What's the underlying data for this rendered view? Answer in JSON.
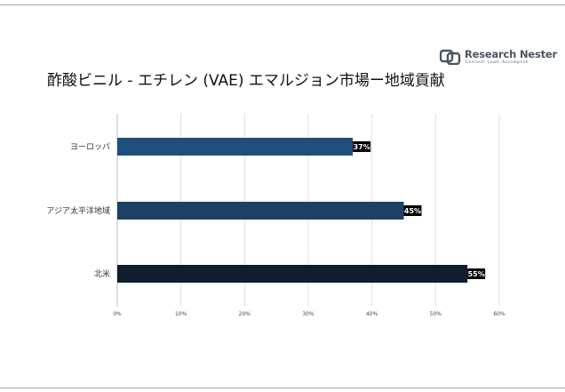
{
  "title": "酢酸ビニル - エチレン (VAE) エマルジョン市場ー地域貢献",
  "logo": {
    "name": "Research Nester",
    "tagline": "Connect. Lead. Accomplish",
    "icon": "research-nester-logo-icon"
  },
  "colors": {
    "europe": "#1f4e7c",
    "apac": "#1f3f66",
    "north_america": "#0f1d2e",
    "grid": "#d9d9d9",
    "axis": "#bfbfbf",
    "label_bg": "#000000"
  },
  "chart_data": {
    "type": "bar",
    "orientation": "horizontal",
    "title": "酢酸ビニル - エチレン (VAE) エマルジョン市場ー地域貢献",
    "categories": [
      "ヨーロッパ",
      "アジア太平洋地域",
      "北米"
    ],
    "values": [
      37,
      45,
      55
    ],
    "data_labels": [
      "37%",
      "45%",
      "55%"
    ],
    "xlim": [
      0,
      60
    ],
    "x_ticks": [
      "0%",
      "10%",
      "20%",
      "30%",
      "40%",
      "50%",
      "60%"
    ],
    "grid": true,
    "legend": "none"
  }
}
